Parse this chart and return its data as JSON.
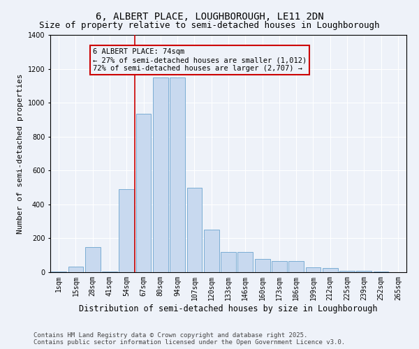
{
  "title": "6, ALBERT PLACE, LOUGHBOROUGH, LE11 2DN",
  "subtitle": "Size of property relative to semi-detached houses in Loughborough",
  "xlabel": "Distribution of semi-detached houses by size in Loughborough",
  "ylabel": "Number of semi-detached properties",
  "categories": [
    "1sqm",
    "15sqm",
    "28sqm",
    "41sqm",
    "54sqm",
    "67sqm",
    "80sqm",
    "94sqm",
    "107sqm",
    "120sqm",
    "133sqm",
    "146sqm",
    "160sqm",
    "173sqm",
    "186sqm",
    "199sqm",
    "212sqm",
    "225sqm",
    "239sqm",
    "252sqm",
    "265sqm"
  ],
  "values": [
    5,
    35,
    150,
    5,
    490,
    935,
    1150,
    1150,
    500,
    250,
    120,
    120,
    80,
    65,
    65,
    30,
    25,
    10,
    10,
    5,
    2
  ],
  "bar_color": "#c8d9ef",
  "bar_edge_color": "#7badd4",
  "vline_color": "#cc0000",
  "vline_pos": 4.5,
  "annotation_text": "6 ALBERT PLACE: 74sqm\n← 27% of semi-detached houses are smaller (1,012)\n72% of semi-detached houses are larger (2,707) →",
  "annotation_box_color": "#cc0000",
  "annotation_bg_color": "#eef2f9",
  "ylim": [
    0,
    1400
  ],
  "yticks": [
    0,
    200,
    400,
    600,
    800,
    1000,
    1200,
    1400
  ],
  "background_color": "#eef2f9",
  "grid_color": "#ffffff",
  "footer_line1": "Contains HM Land Registry data © Crown copyright and database right 2025.",
  "footer_line2": "Contains public sector information licensed under the Open Government Licence v3.0.",
  "title_fontsize": 10,
  "subtitle_fontsize": 9,
  "xlabel_fontsize": 8.5,
  "ylabel_fontsize": 8,
  "tick_fontsize": 7,
  "annotation_fontsize": 7.5,
  "footer_fontsize": 6.5
}
